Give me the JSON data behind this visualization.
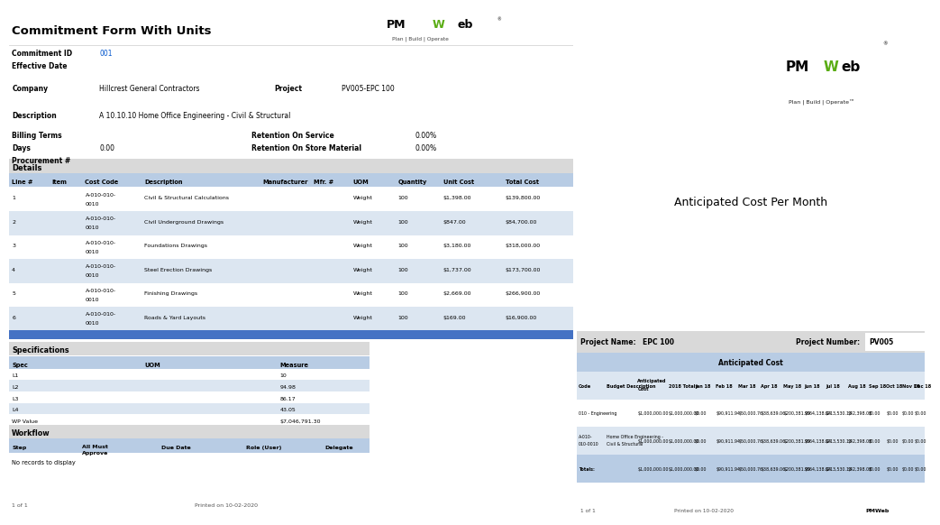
{
  "title": "Commitment Form With Units",
  "bg_color": "#ffffff",
  "dark_green": "#2d6a2d",
  "light_green": "#5aad14",
  "blue_link": "#0055cc",
  "table_header_bg": "#b8cce4",
  "row_bg_light": "#dce6f1",
  "row_bg_white": "#ffffff",
  "section_header_bg": "#d9d9d9",
  "totals_bg": "#b8cce4",
  "separator_blue": "#4472c4",
  "commitment_id": "001",
  "company": "Hillcrest General Contractors",
  "project": "PV005-EPC 100",
  "description": "A 10.10.10 Home Office Engineering - Civil & Structural",
  "days": "0.00",
  "retention_service": "0.00%",
  "retention_store": "0.00%",
  "details_columns": [
    "Line #",
    "Item",
    "Cost Code",
    "Description",
    "Manufacturer",
    "Mfr. #",
    "UOM",
    "Quantity",
    "Unit Cost",
    "Total Cost"
  ],
  "details_rows": [
    [
      "1",
      "",
      "A-010-010-\n0010",
      "Civil & Structural Calculations",
      "",
      "",
      "Weight",
      "100",
      "$1,398.00",
      "$139,800.00"
    ],
    [
      "2",
      "",
      "A-010-010-\n0010",
      "Civil Underground Drawings",
      "",
      "",
      "Weight",
      "100",
      "$847.00",
      "$84,700.00"
    ],
    [
      "3",
      "",
      "A-010-010-\n0010",
      "Foundations Drawings",
      "",
      "",
      "Weight",
      "100",
      "$3,180.00",
      "$318,000.00"
    ],
    [
      "4",
      "",
      "A-010-010-\n0010",
      "Steel Erection Drawings",
      "",
      "",
      "Weight",
      "100",
      "$1,737.00",
      "$173,700.00"
    ],
    [
      "5",
      "",
      "A-010-010-\n0010",
      "Finishing Drawings",
      "",
      "",
      "Weight",
      "100",
      "$2,669.00",
      "$266,900.00"
    ],
    [
      "6",
      "",
      "A-010-010-\n0010",
      "Roads & Yard Layouts",
      "",
      "",
      "Weight",
      "100",
      "$169.00",
      "$16,900.00"
    ]
  ],
  "spec_columns": [
    "Spec",
    "UOM",
    "Measure"
  ],
  "spec_rows": [
    [
      "L1",
      "",
      "10"
    ],
    [
      "L2",
      "",
      "94.98"
    ],
    [
      "L3",
      "",
      "86.17"
    ],
    [
      "L4",
      "",
      "43.05"
    ],
    [
      "WP Value",
      "",
      "$7,046,791.30"
    ]
  ],
  "workflow_columns": [
    "Step",
    "All Must\nApprove",
    "Due Date",
    "Role (User)",
    "Delegate"
  ],
  "workflow_note": "No records to display",
  "footer_left": "1 of 1",
  "footer_center": "Printed on 10-02-2020",
  "right_panel_bg": "#2d6a2d",
  "right_panel_title": "Anticipated Cost Per Month",
  "project_name": "EPC 100",
  "project_number": "PV005",
  "ant_cost_columns": [
    "Code",
    "Budget Description",
    "Anticipated\nCost",
    "2018 Totals",
    "Jan 18",
    "Feb 18",
    "Mar 18",
    "Apr 18",
    "May 18",
    "Jun 18",
    "Jul 18",
    "Aug 18",
    "Sep 18",
    "Oct 18",
    "Nov 18",
    "Dec 18"
  ],
  "ant_cost_rows": [
    [
      "010 - Engineering",
      "",
      "$1,000,000.00",
      "$1,000,000.00",
      "$0.00",
      "$90,911.94",
      "$50,000.76",
      "$38,639.06",
      "$200,381.99",
      "$364,138.04",
      "$213,530.13",
      "$42,398.08",
      "$0.00",
      "$0.00",
      "$0.00",
      "$0.00"
    ],
    [
      "A-010-\n010-0010",
      "Home Office Engineering -\nCivil & Structural",
      "$1,000,000.00",
      "$1,000,000.00",
      "$0.00",
      "$90,911.94",
      "$50,000.76",
      "$38,639.06",
      "$200,381.99",
      "$364,138.04",
      "$213,530.13",
      "$42,398.08",
      "$0.00",
      "$0.00",
      "$0.00",
      "$0.00"
    ],
    [
      "Totals:",
      "",
      "$1,000,000.00",
      "$1,000,000.00",
      "$0.00",
      "$90,911.94",
      "$50,000.76",
      "$38,639.06",
      "$200,381.99",
      "$364,138.04",
      "$213,530.13",
      "$42,398.08",
      "$0.00",
      "$0.00",
      "$0.00",
      "$0.00"
    ]
  ],
  "right_footer_left": "1 of 1",
  "right_footer_center": "Printed on 10-02-2020",
  "right_footer_right": "PMWeb"
}
